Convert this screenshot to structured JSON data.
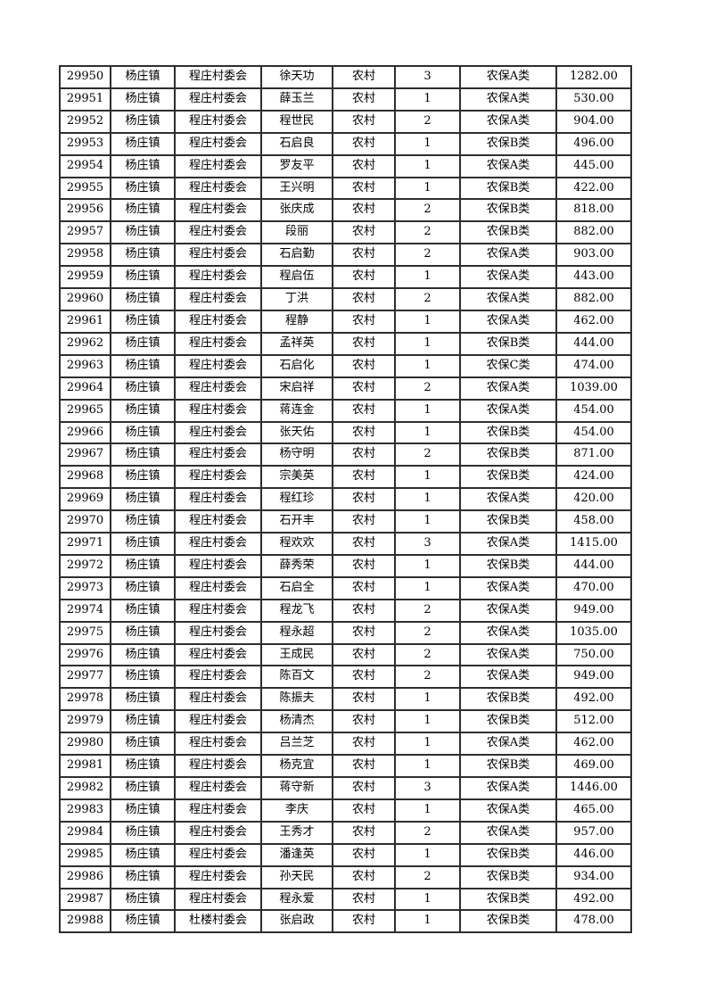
{
  "page": {
    "background": "#ffffff"
  },
  "colors": {
    "border": "#2e2e2e",
    "text": "#000000"
  },
  "table": {
    "columns": [
      {
        "key": "record-id"
      },
      {
        "key": "town"
      },
      {
        "key": "village"
      },
      {
        "key": "name"
      },
      {
        "key": "residence"
      },
      {
        "key": "count"
      },
      {
        "key": "category"
      },
      {
        "key": "amount"
      }
    ],
    "rows": [
      [
        "29950",
        "杨庄镇",
        "程庄村委会",
        "徐天功",
        "农村",
        "3",
        "农保A类",
        "1282.00"
      ],
      [
        "29951",
        "杨庄镇",
        "程庄村委会",
        "薛玉兰",
        "农村",
        "1",
        "农保A类",
        "530.00"
      ],
      [
        "29952",
        "杨庄镇",
        "程庄村委会",
        "程世民",
        "农村",
        "2",
        "农保A类",
        "904.00"
      ],
      [
        "29953",
        "杨庄镇",
        "程庄村委会",
        "石启良",
        "农村",
        "1",
        "农保B类",
        "496.00"
      ],
      [
        "29954",
        "杨庄镇",
        "程庄村委会",
        "罗友平",
        "农村",
        "1",
        "农保A类",
        "445.00"
      ],
      [
        "29955",
        "杨庄镇",
        "程庄村委会",
        "王兴明",
        "农村",
        "1",
        "农保B类",
        "422.00"
      ],
      [
        "29956",
        "杨庄镇",
        "程庄村委会",
        "张庆成",
        "农村",
        "2",
        "农保B类",
        "818.00"
      ],
      [
        "29957",
        "杨庄镇",
        "程庄村委会",
        "段丽",
        "农村",
        "2",
        "农保B类",
        "882.00"
      ],
      [
        "29958",
        "杨庄镇",
        "程庄村委会",
        "石启勤",
        "农村",
        "2",
        "农保A类",
        "903.00"
      ],
      [
        "29959",
        "杨庄镇",
        "程庄村委会",
        "程启伍",
        "农村",
        "1",
        "农保A类",
        "443.00"
      ],
      [
        "29960",
        "杨庄镇",
        "程庄村委会",
        "丁洪",
        "农村",
        "2",
        "农保A类",
        "882.00"
      ],
      [
        "29961",
        "杨庄镇",
        "程庄村委会",
        "程静",
        "农村",
        "1",
        "农保A类",
        "462.00"
      ],
      [
        "29962",
        "杨庄镇",
        "程庄村委会",
        "孟祥英",
        "农村",
        "1",
        "农保B类",
        "444.00"
      ],
      [
        "29963",
        "杨庄镇",
        "程庄村委会",
        "石启化",
        "农村",
        "1",
        "农保C类",
        "474.00"
      ],
      [
        "29964",
        "杨庄镇",
        "程庄村委会",
        "宋启祥",
        "农村",
        "2",
        "农保A类",
        "1039.00"
      ],
      [
        "29965",
        "杨庄镇",
        "程庄村委会",
        "蒋连金",
        "农村",
        "1",
        "农保A类",
        "454.00"
      ],
      [
        "29966",
        "杨庄镇",
        "程庄村委会",
        "张天佑",
        "农村",
        "1",
        "农保B类",
        "454.00"
      ],
      [
        "29967",
        "杨庄镇",
        "程庄村委会",
        "杨守明",
        "农村",
        "2",
        "农保B类",
        "871.00"
      ],
      [
        "29968",
        "杨庄镇",
        "程庄村委会",
        "宗美英",
        "农村",
        "1",
        "农保B类",
        "424.00"
      ],
      [
        "29969",
        "杨庄镇",
        "程庄村委会",
        "程红珍",
        "农村",
        "1",
        "农保A类",
        "420.00"
      ],
      [
        "29970",
        "杨庄镇",
        "程庄村委会",
        "石开丰",
        "农村",
        "1",
        "农保B类",
        "458.00"
      ],
      [
        "29971",
        "杨庄镇",
        "程庄村委会",
        "程欢欢",
        "农村",
        "3",
        "农保A类",
        "1415.00"
      ],
      [
        "29972",
        "杨庄镇",
        "程庄村委会",
        "薛秀荣",
        "农村",
        "1",
        "农保B类",
        "444.00"
      ],
      [
        "29973",
        "杨庄镇",
        "程庄村委会",
        "石启全",
        "农村",
        "1",
        "农保A类",
        "470.00"
      ],
      [
        "29974",
        "杨庄镇",
        "程庄村委会",
        "程龙飞",
        "农村",
        "2",
        "农保A类",
        "949.00"
      ],
      [
        "29975",
        "杨庄镇",
        "程庄村委会",
        "程永超",
        "农村",
        "2",
        "农保A类",
        "1035.00"
      ],
      [
        "29976",
        "杨庄镇",
        "程庄村委会",
        "王成民",
        "农村",
        "2",
        "农保A类",
        "750.00"
      ],
      [
        "29977",
        "杨庄镇",
        "程庄村委会",
        "陈百文",
        "农村",
        "2",
        "农保A类",
        "949.00"
      ],
      [
        "29978",
        "杨庄镇",
        "程庄村委会",
        "陈振夫",
        "农村",
        "1",
        "农保B类",
        "492.00"
      ],
      [
        "29979",
        "杨庄镇",
        "程庄村委会",
        "杨清杰",
        "农村",
        "1",
        "农保B类",
        "512.00"
      ],
      [
        "29980",
        "杨庄镇",
        "程庄村委会",
        "吕兰芝",
        "农村",
        "1",
        "农保A类",
        "462.00"
      ],
      [
        "29981",
        "杨庄镇",
        "程庄村委会",
        "杨克宜",
        "农村",
        "1",
        "农保B类",
        "469.00"
      ],
      [
        "29982",
        "杨庄镇",
        "程庄村委会",
        "蒋守新",
        "农村",
        "3",
        "农保A类",
        "1446.00"
      ],
      [
        "29983",
        "杨庄镇",
        "程庄村委会",
        "李庆",
        "农村",
        "1",
        "农保A类",
        "465.00"
      ],
      [
        "29984",
        "杨庄镇",
        "程庄村委会",
        "王秀才",
        "农村",
        "2",
        "农保A类",
        "957.00"
      ],
      [
        "29985",
        "杨庄镇",
        "程庄村委会",
        "潘逢英",
        "农村",
        "1",
        "农保B类",
        "446.00"
      ],
      [
        "29986",
        "杨庄镇",
        "程庄村委会",
        "孙天民",
        "农村",
        "2",
        "农保B类",
        "934.00"
      ],
      [
        "29987",
        "杨庄镇",
        "程庄村委会",
        "程永爱",
        "农村",
        "1",
        "农保B类",
        "492.00"
      ],
      [
        "29988",
        "杨庄镇",
        "杜楼村委会",
        "张启政",
        "农村",
        "1",
        "农保B类",
        "478.00"
      ]
    ]
  }
}
